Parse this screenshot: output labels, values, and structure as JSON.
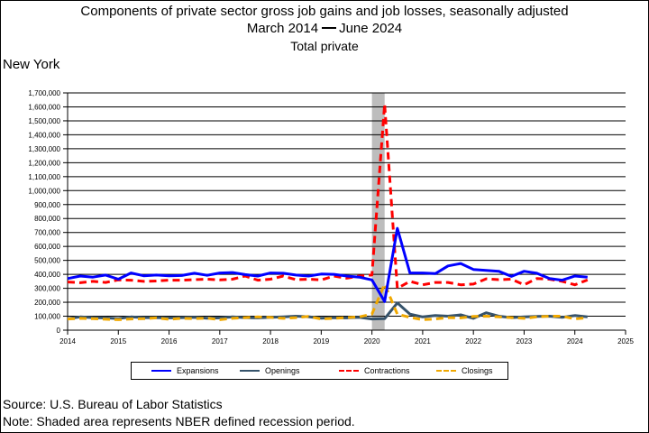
{
  "header": {
    "title": "Components of private sector gross job gains and job losses, seasonally adjusted",
    "range_start": "March 2014",
    "range_end": "June 2024",
    "subtitle": "Total private",
    "region": "New York"
  },
  "footer": {
    "source": "Source: U.S. Bureau of Labor Statistics",
    "note": "Note: Shaded area represents NBER defined recession period."
  },
  "legend": {
    "expansions": "Expansions",
    "openings": "Openings",
    "contractions": "Contractions",
    "closings": "Closings"
  },
  "colors": {
    "expansions": "#0000ff",
    "openings": "#36536b",
    "contractions": "#ff0000",
    "closings": "#f0a800",
    "recession": "#bdbdbd",
    "grid": "#000000"
  },
  "chart_data": {
    "type": "line",
    "xlim": [
      2014,
      2025
    ],
    "ylim": [
      0,
      1700000
    ],
    "x_ticks": [
      "2014",
      "2015",
      "2016",
      "2017",
      "2018",
      "2019",
      "2020",
      "2021",
      "2022",
      "2023",
      "2024",
      "2025"
    ],
    "y_ticks": [
      "0",
      "100,000",
      "200,000",
      "300,000",
      "400,000",
      "500,000",
      "600,000",
      "700,000",
      "800,000",
      "900,000",
      "1,000,000",
      "1,100,000",
      "1,200,000",
      "1,300,000",
      "1,400,000",
      "1,500,000",
      "1,600,000",
      "1,700,000"
    ],
    "grid": "horizontal",
    "legend_position": "bottom",
    "recession": {
      "start": "2020 Q1",
      "end": "2020 Q2"
    },
    "x": [
      "2014 Q1",
      "2014 Q2",
      "2014 Q3",
      "2014 Q4",
      "2015 Q1",
      "2015 Q2",
      "2015 Q3",
      "2015 Q4",
      "2016 Q1",
      "2016 Q2",
      "2016 Q3",
      "2016 Q4",
      "2017 Q1",
      "2017 Q2",
      "2017 Q3",
      "2017 Q4",
      "2018 Q1",
      "2018 Q2",
      "2018 Q3",
      "2018 Q4",
      "2019 Q1",
      "2019 Q2",
      "2019 Q3",
      "2019 Q4",
      "2020 Q1",
      "2020 Q2",
      "2020 Q3",
      "2020 Q4",
      "2021 Q1",
      "2021 Q2",
      "2021 Q3",
      "2021 Q4",
      "2022 Q1",
      "2022 Q2",
      "2022 Q3",
      "2022 Q4",
      "2023 Q1",
      "2023 Q2",
      "2023 Q3",
      "2023 Q4",
      "2024 Q1",
      "2024 Q2"
    ],
    "series": [
      {
        "name": "Expansions",
        "key": "expansions",
        "dash": "solid",
        "values": [
          370000,
          388000,
          380000,
          395000,
          365000,
          410000,
          390000,
          395000,
          390000,
          392000,
          408000,
          393000,
          410000,
          413000,
          398000,
          388000,
          410000,
          408000,
          395000,
          388000,
          402000,
          400000,
          388000,
          380000,
          360000,
          205000,
          730000,
          410000,
          410000,
          405000,
          460000,
          478000,
          435000,
          428000,
          422000,
          385000,
          422000,
          408000,
          370000,
          358000,
          388000,
          380000
        ]
      },
      {
        "name": "Openings",
        "key": "openings",
        "dash": "solid",
        "values": [
          82000,
          95000,
          90000,
          88000,
          83000,
          95000,
          90000,
          90000,
          88000,
          90000,
          92000,
          86000,
          88000,
          95000,
          90000,
          88000,
          92000,
          95000,
          100000,
          96000,
          86000,
          90000,
          88000,
          92000,
          80000,
          82000,
          195000,
          115000,
          95000,
          105000,
          100000,
          110000,
          85000,
          125000,
          100000,
          90000,
          95000,
          98000,
          100000,
          92000,
          105000,
          95000
        ]
      },
      {
        "name": "Contractions",
        "key": "contractions",
        "dash": "dashed",
        "values": [
          345000,
          340000,
          350000,
          342000,
          360000,
          358000,
          350000,
          352000,
          358000,
          358000,
          362000,
          365000,
          360000,
          365000,
          388000,
          358000,
          365000,
          388000,
          362000,
          365000,
          360000,
          388000,
          372000,
          388000,
          395000,
          1620000,
          300000,
          350000,
          325000,
          342000,
          342000,
          325000,
          330000,
          368000,
          362000,
          365000,
          325000,
          370000,
          365000,
          350000,
          325000,
          360000
        ]
      },
      {
        "name": "Closings",
        "key": "closings",
        "dash": "dashed",
        "values": [
          80000,
          85000,
          82000,
          78000,
          75000,
          80000,
          82000,
          88000,
          78000,
          85000,
          83000,
          86000,
          75000,
          85000,
          90000,
          95000,
          92000,
          85000,
          90000,
          98000,
          80000,
          85000,
          90000,
          95000,
          115000,
          330000,
          115000,
          92000,
          75000,
          80000,
          90000,
          88000,
          98000,
          100000,
          95000,
          90000,
          85000,
          95000,
          100000,
          100000,
          80000,
          90000
        ]
      }
    ]
  }
}
